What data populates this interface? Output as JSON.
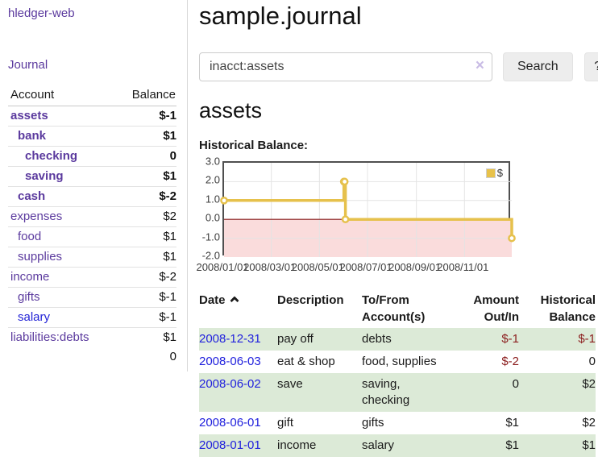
{
  "app": {
    "brand": "hledger-web",
    "nav_journal": "Journal"
  },
  "sidebar": {
    "account_header": "Account",
    "balance_header": "Balance",
    "accounts": [
      {
        "name": "assets",
        "depth": 1,
        "balance": "$-1",
        "bold": true,
        "balance_tone": "neg"
      },
      {
        "name": "bank",
        "depth": 2,
        "balance": "$1",
        "bold": true,
        "balance_tone": "normal"
      },
      {
        "name": "checking",
        "depth": 3,
        "balance": "0",
        "bold": true,
        "balance_tone": "normal"
      },
      {
        "name": "saving",
        "depth": 3,
        "balance": "$1",
        "bold": true,
        "balance_tone": "normal"
      },
      {
        "name": "cash",
        "depth": 2,
        "balance": "$-2",
        "bold": true,
        "balance_tone": "neg"
      },
      {
        "name": "expenses",
        "depth": 1,
        "balance": "$2",
        "bold": false,
        "balance_tone": "normal"
      },
      {
        "name": "food",
        "depth": 2,
        "balance": "$1",
        "bold": false,
        "balance_tone": "normal"
      },
      {
        "name": "supplies",
        "depth": 2,
        "balance": "$1",
        "bold": false,
        "balance_tone": "normal"
      },
      {
        "name": "income",
        "depth": 1,
        "balance": "$-2",
        "bold": false,
        "balance_tone": "neg-muted"
      },
      {
        "name": "gifts",
        "depth": 2,
        "balance": "$-1",
        "bold": false,
        "balance_tone": "neg-muted"
      },
      {
        "name": "salary",
        "depth": 2,
        "balance": "$-1",
        "bold": false,
        "balance_tone": "neg-muted",
        "link_state": "unvisited"
      },
      {
        "name": "liabilities:debts",
        "depth": 1,
        "balance": "$1",
        "bold": false,
        "balance_tone": "normal"
      }
    ],
    "total": "0"
  },
  "main": {
    "title": "sample.journal",
    "search": {
      "value": "inacct:assets",
      "clear_icon": "×",
      "button": "Search",
      "help_button": "?"
    },
    "account_title": "assets",
    "chart_label": "Historical Balance:"
  },
  "chart_data": {
    "type": "line",
    "step": true,
    "title": "Historical Balance:",
    "series": [
      {
        "name": "$",
        "color": "#e6c14c",
        "points": [
          [
            "2008-01-01",
            1
          ],
          [
            "2008-06-01",
            2
          ],
          [
            "2008-06-02",
            2
          ],
          [
            "2008-06-03",
            0
          ],
          [
            "2008-12-31",
            -1
          ]
        ]
      }
    ],
    "x_range": [
      "2008-01-01",
      "2008-12-31"
    ],
    "ylim": [
      -2,
      3
    ],
    "y_ticks": [
      "3.0",
      "2.0",
      "1.0",
      "0.0",
      "-1.0",
      "-2.0"
    ],
    "x_ticks": [
      "2008/01/01",
      "2008/03/01",
      "2008/05/01",
      "2008/07/01",
      "2008/09/01",
      "2008/11/01"
    ],
    "grid": true,
    "legend_position": "top-right",
    "negative_region_color": "#fadcdc",
    "zero_line_color": "#8b1a1a",
    "gridline_color": "#e4e4e4"
  },
  "register": {
    "headers": [
      "Date",
      "Description",
      "To/From Account(s)",
      "Amount Out/In",
      "Historical Balance"
    ],
    "rows": [
      {
        "date": "2008-12-31",
        "description": "pay off",
        "accounts": "debts",
        "amount": "$-1",
        "balance": "$-1"
      },
      {
        "date": "2008-06-03",
        "description": "eat & shop",
        "accounts": "food, supplies",
        "amount": "$-2",
        "balance": "0"
      },
      {
        "date": "2008-06-02",
        "description": "save",
        "accounts": "saving, checking",
        "amount": "0",
        "balance": "$2"
      },
      {
        "date": "2008-06-01",
        "description": "gift",
        "accounts": "gifts",
        "amount": "$1",
        "balance": "$2"
      },
      {
        "date": "2008-01-01",
        "description": "income",
        "accounts": "salary",
        "amount": "$1",
        "balance": "$1"
      }
    ]
  }
}
